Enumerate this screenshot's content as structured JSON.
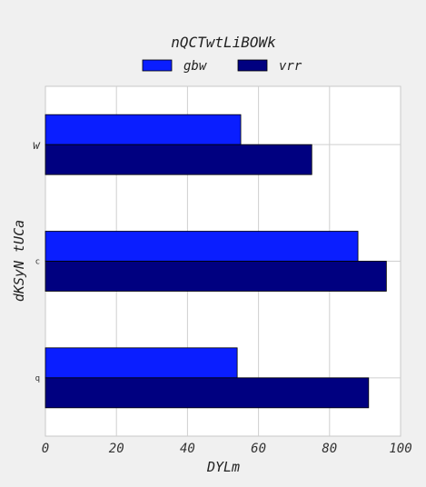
{
  "chart_data": {
    "type": "bar",
    "orientation": "horizontal",
    "title": "nQCTwtLiBOWk",
    "xlabel": "DYLm",
    "ylabel": "dKSyN tUCa",
    "categories": [
      "w",
      "c",
      "q"
    ],
    "series": [
      {
        "name": "gbw",
        "values": [
          55,
          88,
          54
        ],
        "color": "#0a1eff"
      },
      {
        "name": "vrr",
        "values": [
          75,
          96,
          91
        ],
        "color": "#000080"
      }
    ],
    "xlim": [
      0,
      100
    ],
    "xticks": [
      0,
      20,
      40,
      60,
      80,
      100
    ],
    "grid": true,
    "legend_position": "top-center"
  }
}
